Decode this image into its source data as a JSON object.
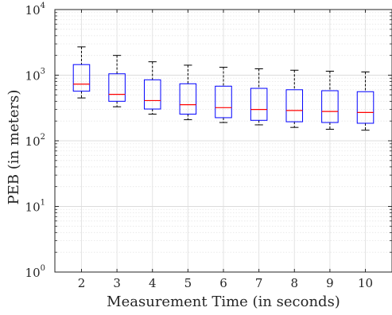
{
  "chart_data": {
    "type": "box",
    "xlabel": "Measurement Time (in seconds)",
    "ylabel": "PEB (in meters)",
    "y_scale": "log",
    "ylim": [
      1,
      10000
    ],
    "y_ticks": [
      {
        "value": 1,
        "base": "10",
        "exp": "0"
      },
      {
        "value": 10,
        "base": "10",
        "exp": "1"
      },
      {
        "value": 100,
        "base": "10",
        "exp": "2"
      },
      {
        "value": 1000,
        "base": "10",
        "exp": "3"
      },
      {
        "value": 10000,
        "base": "10",
        "exp": "4"
      }
    ],
    "grid": true,
    "box_color": "#0000ff",
    "median_color": "#ff0000",
    "whisker_color": "#000000",
    "categories": [
      "2",
      "3",
      "4",
      "5",
      "6",
      "7",
      "8",
      "9",
      "10"
    ],
    "boxes": [
      {
        "x": "2",
        "low": 450,
        "q1": 570,
        "median": 730,
        "q3": 1450,
        "high": 2700
      },
      {
        "x": "3",
        "low": 330,
        "q1": 400,
        "median": 510,
        "q3": 1050,
        "high": 2000
      },
      {
        "x": "4",
        "low": 255,
        "q1": 305,
        "median": 410,
        "q3": 850,
        "high": 1600
      },
      {
        "x": "5",
        "low": 210,
        "q1": 255,
        "median": 355,
        "q3": 740,
        "high": 1420
      },
      {
        "x": "6",
        "low": 190,
        "q1": 225,
        "median": 320,
        "q3": 680,
        "high": 1320
      },
      {
        "x": "7",
        "low": 175,
        "q1": 205,
        "median": 300,
        "q3": 630,
        "high": 1250
      },
      {
        "x": "8",
        "low": 160,
        "q1": 195,
        "median": 290,
        "q3": 600,
        "high": 1190
      },
      {
        "x": "9",
        "low": 150,
        "q1": 190,
        "median": 280,
        "q3": 580,
        "high": 1150
      },
      {
        "x": "10",
        "low": 145,
        "q1": 185,
        "median": 270,
        "q3": 560,
        "high": 1120
      }
    ]
  }
}
